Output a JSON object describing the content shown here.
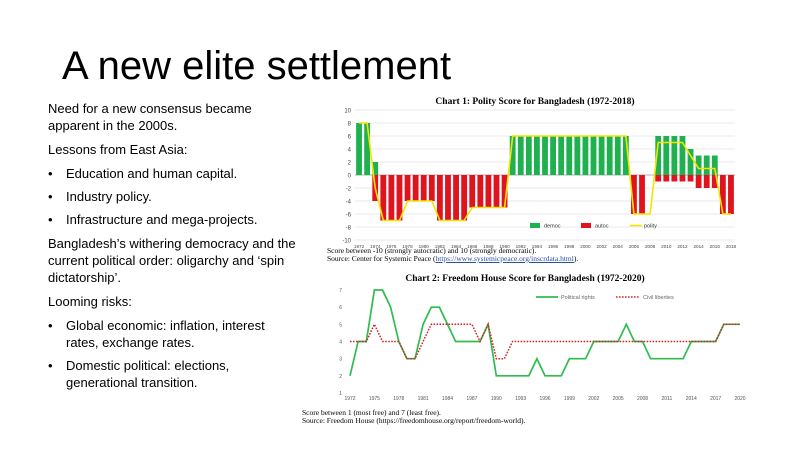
{
  "slide": {
    "title": "A new elite settlement",
    "body": {
      "p1": "Need for a new consensus became apparent in the 2000s.",
      "p2": "Lessons from East Asia:",
      "bullets1": [
        "Education and human capital.",
        "Industry policy.",
        "Infrastructure and mega-projects."
      ],
      "p3": "Bangladesh’s withering democracy and the current political order: oligarchy and ‘spin dictatorship’.",
      "p4": "Looming risks:",
      "bullets2": [
        "Global economic: inflation, interest rates, exchange rates.",
        "Domestic political: elections, generational transition."
      ],
      "bullet_glyph": "•"
    }
  },
  "chart1": {
    "title": "Chart 1: Polity Score for Bangladesh (1972-2018)",
    "note_line1": "Score between -10 (strongly autocratic) and 10 (strongly democratic).",
    "note_line2_prefix": "Source: Center for Systemic Peace (",
    "note_link": "https://www.systemicpeace.org/inscrdata.html",
    "note_line2_suffix": ")."
  },
  "chart2": {
    "title": "Chart 2: Freedom House Score for Bangladesh (1972-2020)",
    "note_line1": "Score between 1 (most free) and 7 (least free).",
    "note_line2": "Source: Freedom House (https://freedomhouse.org/report/freedom-world)."
  },
  "chart_data": [
    {
      "type": "bar",
      "title": "Chart 1: Polity Score for Bangladesh (1972-2018)",
      "years": [
        1972,
        1973,
        1974,
        1975,
        1976,
        1977,
        1978,
        1979,
        1980,
        1981,
        1982,
        1983,
        1984,
        1985,
        1986,
        1987,
        1988,
        1989,
        1990,
        1991,
        1992,
        1993,
        1994,
        1995,
        1996,
        1997,
        1998,
        1999,
        2000,
        2001,
        2002,
        2003,
        2004,
        2005,
        2006,
        2007,
        2008,
        2009,
        2010,
        2011,
        2012,
        2013,
        2014,
        2015,
        2016,
        2017,
        2018
      ],
      "tick_labels": [
        "1972",
        "1974",
        "1976",
        "1978",
        "1980",
        "1982",
        "1984",
        "1986",
        "1988",
        "1990",
        "1992",
        "1994",
        "1996",
        "1998",
        "2000",
        "2002",
        "2004",
        "2006",
        "2008",
        "2010",
        "2012",
        "2014",
        "2016",
        "2018"
      ],
      "ylim": [
        -10,
        10
      ],
      "yticks": [
        -10,
        -8,
        -6,
        -4,
        -2,
        0,
        2,
        4,
        6,
        8,
        10
      ],
      "series": [
        {
          "name": "democ",
          "color": "#1fb04f",
          "values": [
            8,
            8,
            2,
            0,
            0,
            0,
            0,
            0,
            0,
            0,
            0,
            0,
            0,
            0,
            0,
            0,
            0,
            0,
            0,
            6,
            6,
            6,
            6,
            6,
            6,
            6,
            6,
            6,
            6,
            6,
            6,
            6,
            6,
            6,
            0,
            0,
            0,
            6,
            6,
            6,
            6,
            4,
            3,
            3,
            3,
            0,
            0
          ]
        },
        {
          "name": "autoc",
          "color": "#e0141e",
          "values": [
            0,
            0,
            -4,
            -7,
            -7,
            -7,
            -4,
            -4,
            -4,
            -4,
            -7,
            -7,
            -7,
            -7,
            -5,
            -5,
            -5,
            -5,
            -5,
            0,
            0,
            0,
            0,
            0,
            0,
            0,
            0,
            0,
            0,
            0,
            0,
            0,
            0,
            0,
            -6,
            -6,
            0,
            -1,
            -1,
            -1,
            -1,
            -1,
            -2,
            -2,
            -2,
            -6,
            -6
          ]
        },
        {
          "name": "polity",
          "color": "#f2e600",
          "values": [
            8,
            8,
            -2,
            -7,
            -7,
            -7,
            -4,
            -4,
            -4,
            -4,
            -7,
            -7,
            -7,
            -7,
            -5,
            -5,
            -5,
            -5,
            -5,
            6,
            6,
            6,
            6,
            6,
            6,
            6,
            6,
            6,
            6,
            6,
            6,
            6,
            6,
            6,
            -6,
            -6,
            -6,
            5,
            5,
            5,
            5,
            3,
            1,
            1,
            1,
            -6,
            -6
          ]
        }
      ],
      "legend_position": "bottom"
    },
    {
      "type": "line",
      "title": "Chart 2: Freedom House Score for Bangladesh (1972-2020)",
      "years": [
        1972,
        1973,
        1974,
        1975,
        1976,
        1977,
        1978,
        1979,
        1980,
        1981,
        1982,
        1983,
        1984,
        1985,
        1986,
        1987,
        1988,
        1989,
        1990,
        1991,
        1992,
        1993,
        1994,
        1995,
        1996,
        1997,
        1998,
        1999,
        2000,
        2001,
        2002,
        2003,
        2004,
        2005,
        2006,
        2007,
        2008,
        2009,
        2010,
        2011,
        2012,
        2013,
        2014,
        2015,
        2016,
        2017,
        2018,
        2019,
        2020
      ],
      "tick_labels": [
        "1972",
        "1975",
        "1978",
        "1981",
        "1984",
        "1987",
        "1990",
        "1993",
        "1996",
        "1999",
        "2002",
        "2005",
        "2008",
        "2011",
        "2014",
        "2017",
        "2020"
      ],
      "ylim": [
        1,
        7
      ],
      "yticks": [
        1,
        2,
        3,
        4,
        5,
        6,
        7
      ],
      "series": [
        {
          "name": "Political rights",
          "color": "#2ebd4e",
          "style": "solid",
          "values": [
            2,
            4,
            4,
            7,
            7,
            6,
            4,
            3,
            3,
            5,
            6,
            6,
            5,
            4,
            4,
            4,
            4,
            5,
            2,
            2,
            2,
            2,
            2,
            3,
            2,
            2,
            2,
            3,
            3,
            3,
            4,
            4,
            4,
            4,
            5,
            4,
            4,
            3,
            3,
            3,
            3,
            3,
            4,
            4,
            4,
            4,
            5,
            5,
            5
          ]
        },
        {
          "name": "Civil liberties",
          "color": "#d2232a",
          "style": "dotted",
          "values": [
            4,
            4,
            4,
            5,
            4,
            4,
            4,
            3,
            3,
            4,
            5,
            5,
            5,
            5,
            5,
            5,
            4,
            5,
            3,
            3,
            4,
            4,
            4,
            4,
            4,
            4,
            4,
            4,
            4,
            4,
            4,
            4,
            4,
            4,
            4,
            4,
            4,
            4,
            4,
            4,
            4,
            4,
            4,
            4,
            4,
            4,
            5,
            5,
            5
          ]
        }
      ],
      "legend_position": "top-right"
    }
  ]
}
